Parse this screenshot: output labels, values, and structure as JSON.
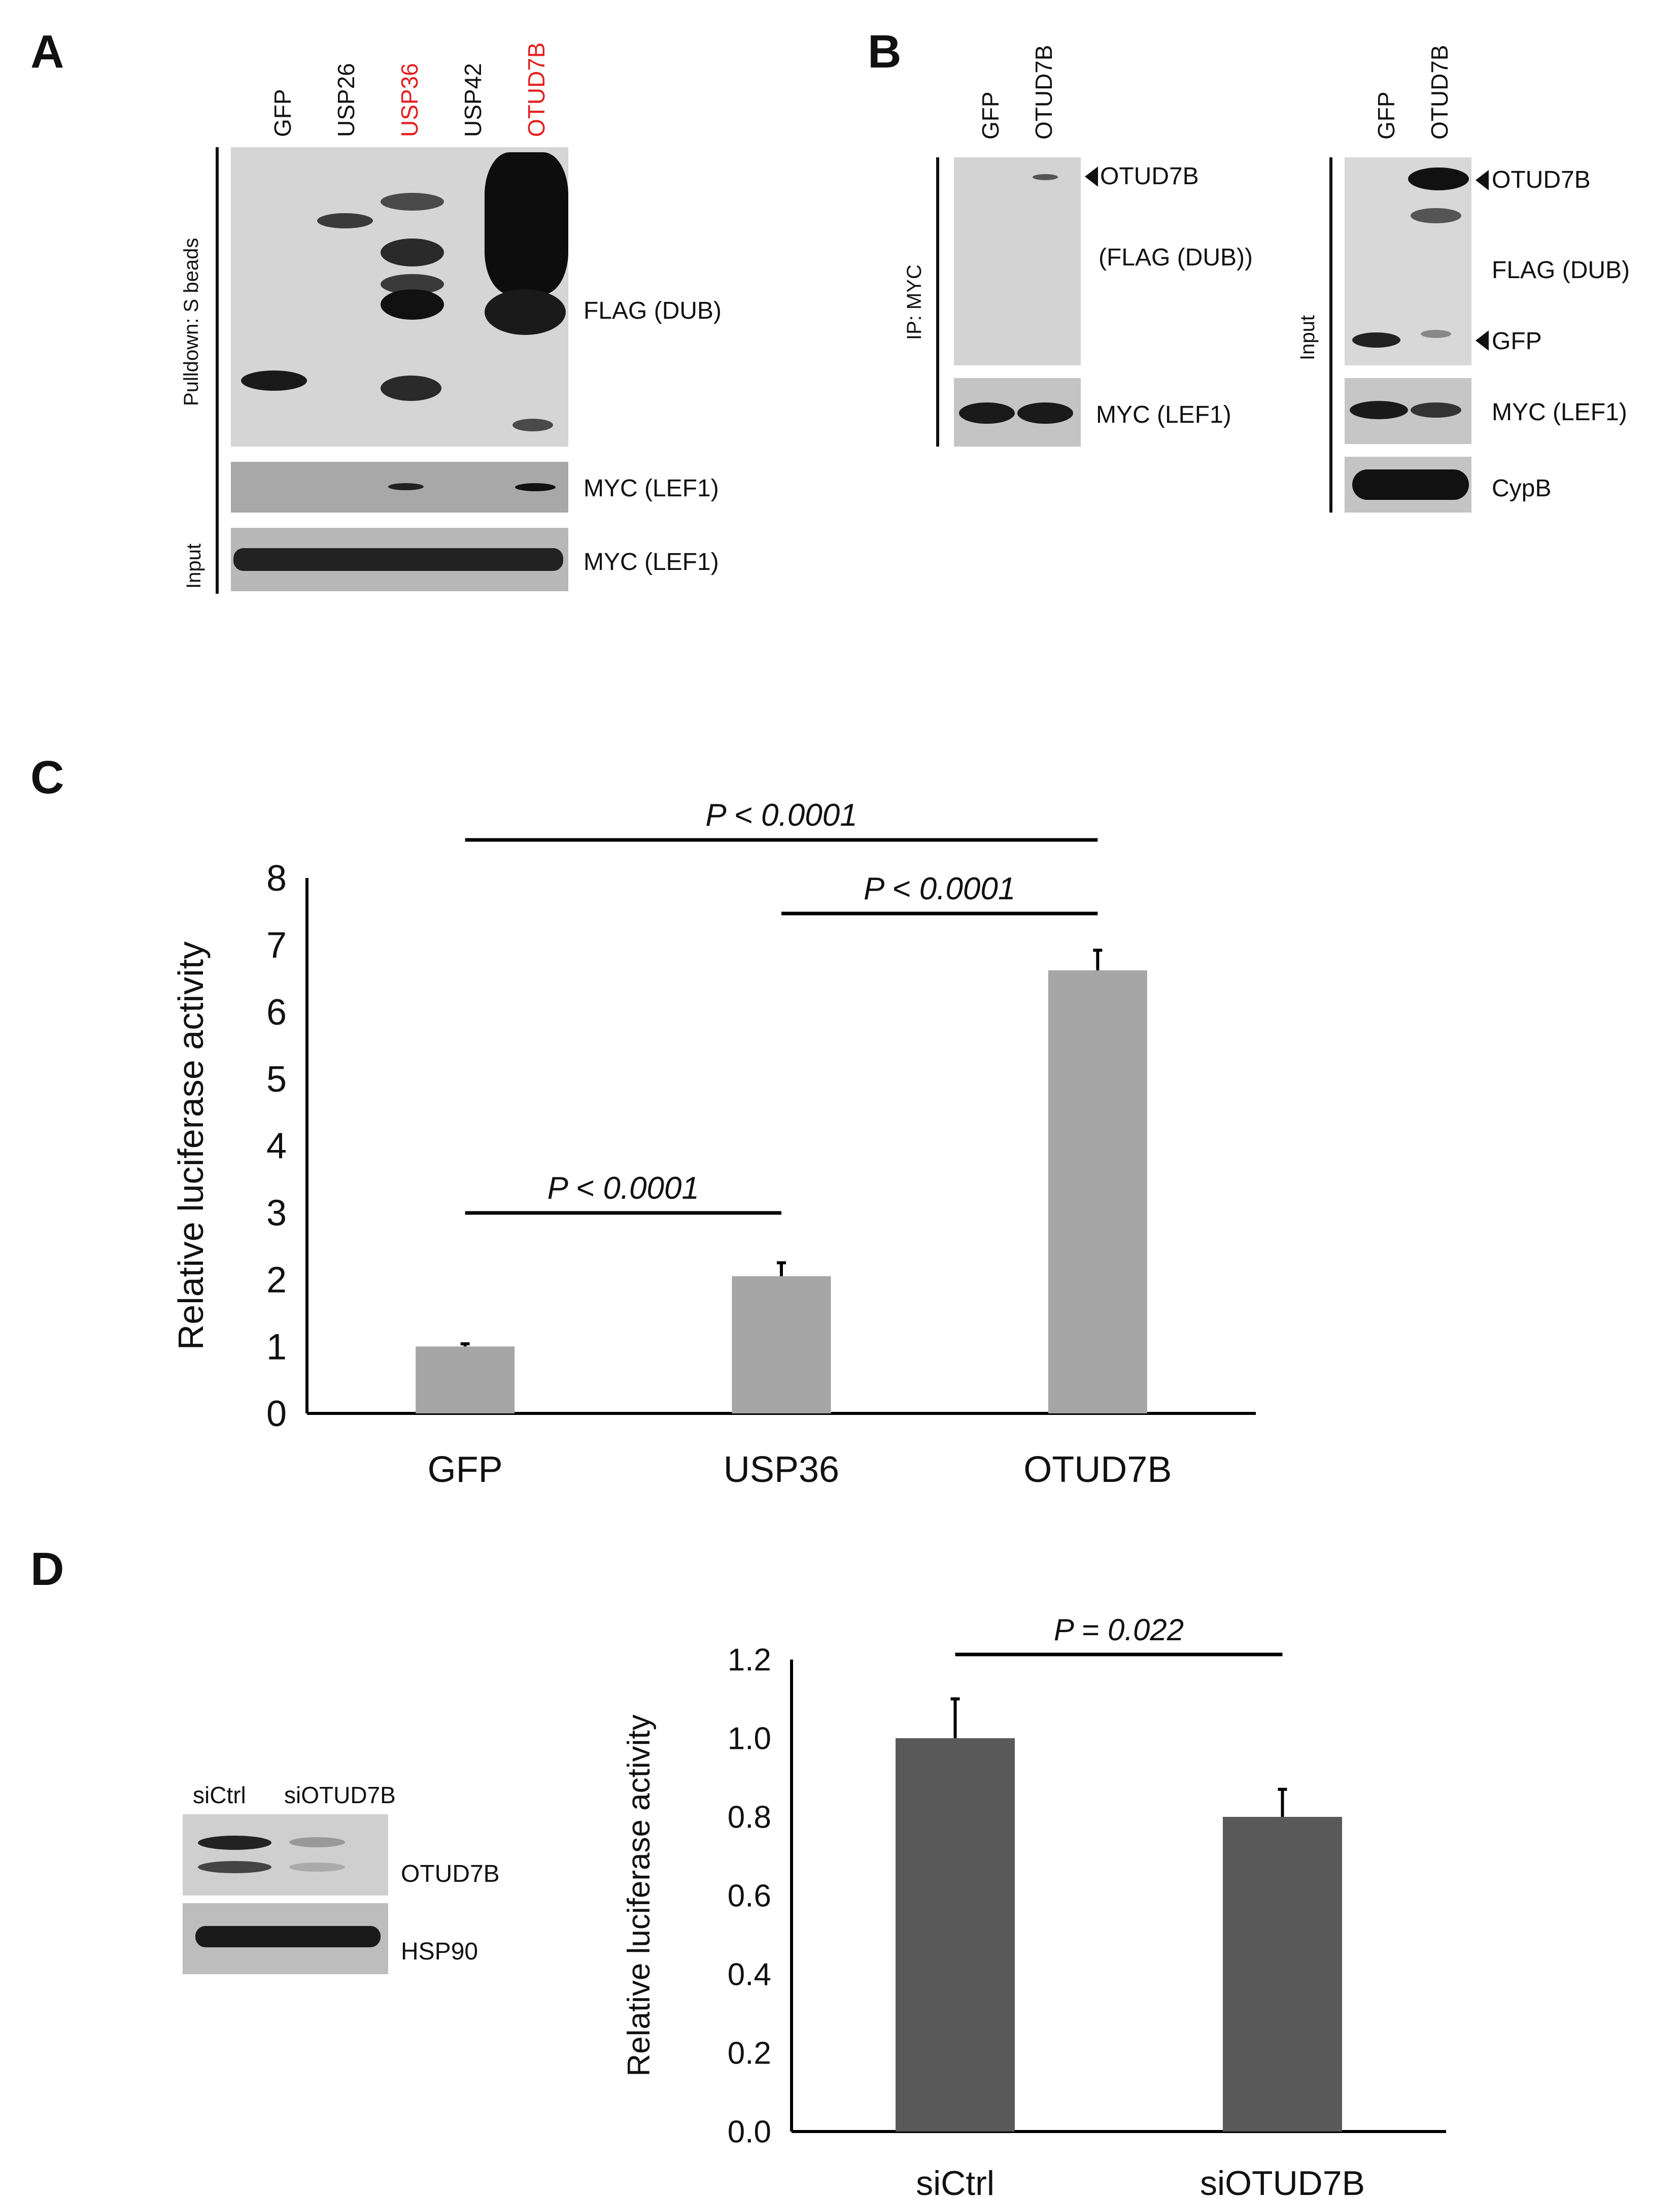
{
  "panels": {
    "A": {
      "letter": "A",
      "lanes": [
        "GFP",
        "USP26",
        "USP36",
        "USP42",
        "OTUD7B"
      ],
      "highlight_color": "#e32020",
      "side_labels": [
        "Pulldown: S beads",
        "Input"
      ],
      "blot_labels": [
        "FLAG (DUB)",
        "MYC (LEF1)",
        "MYC (LEF1)"
      ]
    },
    "B": {
      "letter": "B",
      "ip": {
        "lanes": [
          "GFP",
          "OTUD7B"
        ],
        "side_label": "IP: MYC",
        "labels": [
          "OTUD7B",
          "(FLAG (DUB))",
          "MYC (LEF1)"
        ]
      },
      "input": {
        "lanes": [
          "GFP",
          "OTUD7B"
        ],
        "side_label": "Input",
        "labels": [
          "OTUD7B",
          "FLAG (DUB)",
          "GFP",
          "MYC (LEF1)",
          "CypB"
        ]
      }
    },
    "C": {
      "letter": "C"
    },
    "D": {
      "letter": "D",
      "lanes": [
        "siCtrl",
        "siOTUD7B"
      ],
      "blot_labels": [
        "OTUD7B",
        "HSP90"
      ]
    }
  },
  "chart_data": [
    {
      "type": "bar",
      "panel": "C",
      "categories": [
        "GFP",
        "USP36",
        "OTUD7B"
      ],
      "values": [
        1.0,
        2.05,
        6.62
      ],
      "errors": [
        0.04,
        0.2,
        0.3
      ],
      "ylabel": "Relative luciferase activity",
      "ylim": [
        0,
        8
      ],
      "yticks": [
        "0",
        "1",
        "2",
        "3",
        "4",
        "5",
        "6",
        "7",
        "8"
      ],
      "bar_color": "#a6a6a6",
      "grid": false,
      "annotations": [
        {
          "text": "P < 0.0001",
          "from": "GFP",
          "to": "OTUD7B"
        },
        {
          "text": "P < 0.0001",
          "from": "USP36",
          "to": "OTUD7B"
        },
        {
          "text": "P < 0.0001",
          "from": "GFP",
          "to": "USP36"
        }
      ]
    },
    {
      "type": "bar",
      "panel": "D",
      "categories": [
        "siCtrl",
        "siOTUD7B"
      ],
      "values": [
        1.0,
        0.8
      ],
      "errors": [
        0.1,
        0.07
      ],
      "ylabel": "Relative luciferase activity",
      "ylim": [
        0,
        1.2
      ],
      "yticks": [
        "0.0",
        "0.2",
        "0.4",
        "0.6",
        "0.8",
        "1.0",
        "1.2"
      ],
      "bar_color": "#595959",
      "grid": false,
      "annotations": [
        {
          "text": "P = 0.022",
          "from": "siCtrl",
          "to": "siOTUD7B"
        }
      ]
    }
  ]
}
